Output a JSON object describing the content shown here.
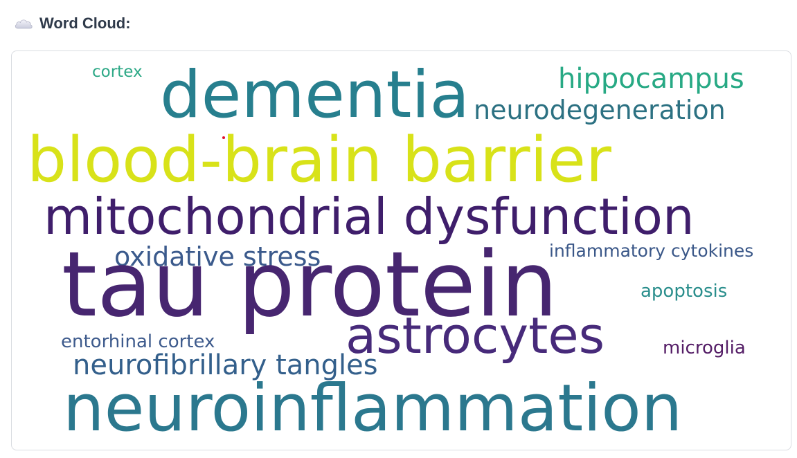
{
  "header": {
    "icon": "cloud-icon",
    "title": "Word Cloud:"
  },
  "wordcloud": {
    "words": [
      {
        "text": "cortex",
        "color": "#2ea987"
      },
      {
        "text": "dementia",
        "color": "#277f8e"
      },
      {
        "text": "hippocampus",
        "color": "#27a984"
      },
      {
        "text": "neurodegeneration",
        "color": "#2c7182"
      },
      {
        "text": "blood-brain barrier",
        "color": "#d8e219"
      },
      {
        "text": "mitochondrial dysfunction",
        "color": "#3f1e6b"
      },
      {
        "text": "oxidative stress",
        "color": "#3b5a8c"
      },
      {
        "text": "inflammatory cytokines",
        "color": "#3a5788"
      },
      {
        "text": "tau protein",
        "color": "#472670"
      },
      {
        "text": "apoptosis",
        "color": "#2a8e8c"
      },
      {
        "text": "astrocytes",
        "color": "#472a7a"
      },
      {
        "text": "entorhinal cortex",
        "color": "#3d5a8c"
      },
      {
        "text": "microglia",
        "color": "#541d66"
      },
      {
        "text": "neurofibrillary tangles",
        "color": "#335f8b"
      },
      {
        "text": "neuroinflammation",
        "color": "#2b788e"
      }
    ]
  }
}
